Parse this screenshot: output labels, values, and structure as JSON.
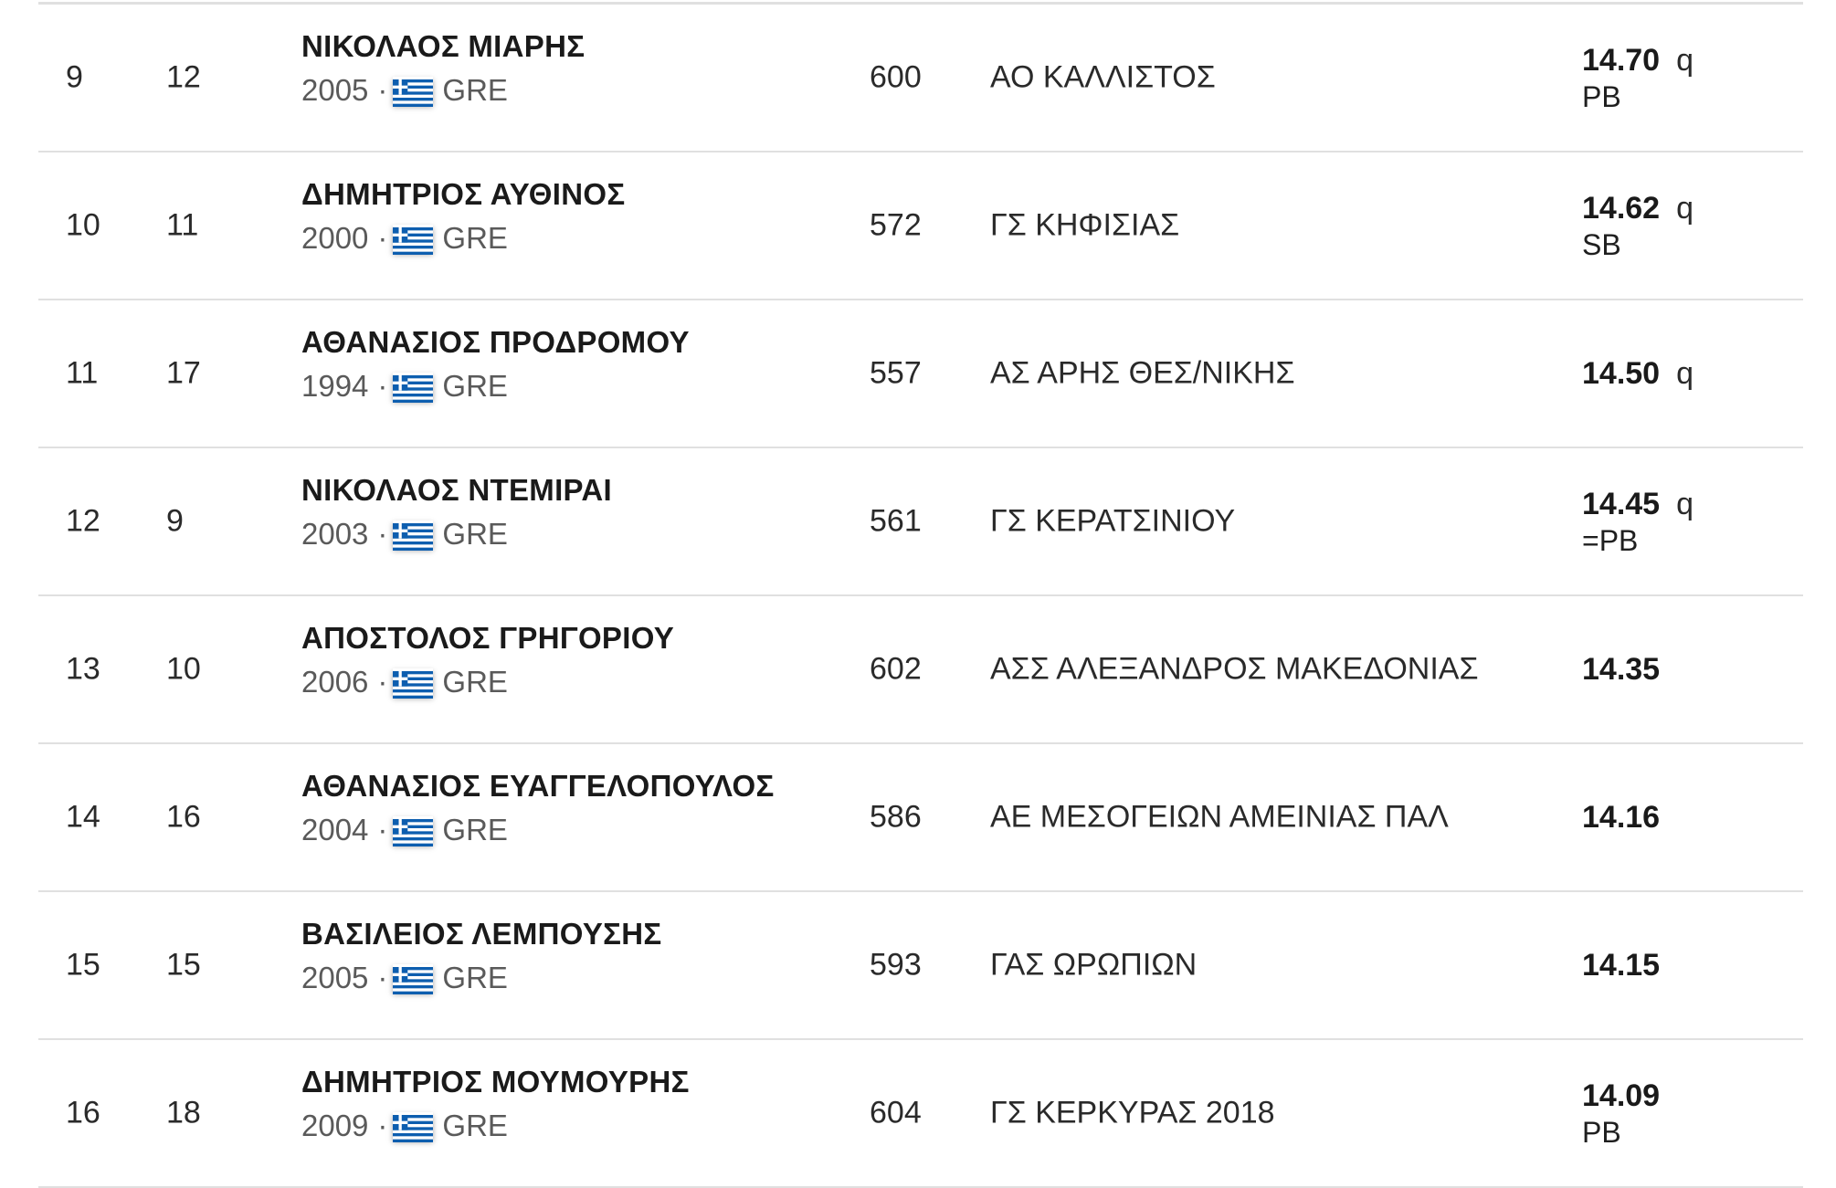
{
  "flag": {
    "icon": "greece-flag-icon",
    "blue": "#0d5eaf",
    "white": "#ffffff"
  },
  "rows": [
    {
      "position": "9",
      "lane": "12",
      "name": "ΝΙΚΟΛΑΟΣ ΜΙΑΡΗΣ",
      "year": "2005",
      "country": "GRE",
      "bib": "600",
      "club": "ΑΟ ΚΑΛΛΙΣΤΟΣ",
      "mark": "14.70",
      "qualifier": "q",
      "note": "PB"
    },
    {
      "position": "10",
      "lane": "11",
      "name": "ΔΗΜΗΤΡΙΟΣ ΑΥΘΙΝΟΣ",
      "year": "2000",
      "country": "GRE",
      "bib": "572",
      "club": "ΓΣ ΚΗΦΙΣΙΑΣ",
      "mark": "14.62",
      "qualifier": "q",
      "note": "SB"
    },
    {
      "position": "11",
      "lane": "17",
      "name": "ΑΘΑΝΑΣΙΟΣ ΠΡΟΔΡΟΜΟΥ",
      "year": "1994",
      "country": "GRE",
      "bib": "557",
      "club": "ΑΣ ΑΡΗΣ ΘΕΣ/ΝΙΚΗΣ",
      "mark": "14.50",
      "qualifier": "q",
      "note": ""
    },
    {
      "position": "12",
      "lane": "9",
      "name": "ΝΙΚΟΛΑΟΣ ΝΤΕΜΙΡΑΙ",
      "year": "2003",
      "country": "GRE",
      "bib": "561",
      "club": "ΓΣ ΚΕΡΑΤΣΙΝΙΟΥ",
      "mark": "14.45",
      "qualifier": "q",
      "note": "=PB"
    },
    {
      "position": "13",
      "lane": "10",
      "name": "ΑΠΟΣΤΟΛΟΣ ΓΡΗΓΟΡΙΟΥ",
      "year": "2006",
      "country": "GRE",
      "bib": "602",
      "club": "ΑΣΣ ΑΛΕΞΑΝΔΡΟΣ ΜΑΚΕΔΟΝΙΑΣ",
      "mark": "14.35",
      "qualifier": "",
      "note": ""
    },
    {
      "position": "14",
      "lane": "16",
      "name": "ΑΘΑΝΑΣΙΟΣ ΕΥΑΓΓΕΛΟΠΟΥΛΟΣ",
      "year": "2004",
      "country": "GRE",
      "bib": "586",
      "club": "ΑΕ ΜΕΣΟΓΕΙΩΝ ΑΜΕΙΝΙΑΣ ΠΑΛ",
      "mark": "14.16",
      "qualifier": "",
      "note": ""
    },
    {
      "position": "15",
      "lane": "15",
      "name": "ΒΑΣΙΛΕΙΟΣ ΛΕΜΠΟΥΣΗΣ",
      "year": "2005",
      "country": "GRE",
      "bib": "593",
      "club": "ΓΑΣ ΩΡΩΠΙΩΝ",
      "mark": "14.15",
      "qualifier": "",
      "note": ""
    },
    {
      "position": "16",
      "lane": "18",
      "name": "ΔΗΜΗΤΡΙΟΣ ΜΟΥΜΟΥΡΗΣ",
      "year": "2009",
      "country": "GRE",
      "bib": "604",
      "club": "ΓΣ ΚΕΡΚΥΡΑΣ 2018",
      "mark": "14.09",
      "qualifier": "",
      "note": "PB"
    }
  ]
}
